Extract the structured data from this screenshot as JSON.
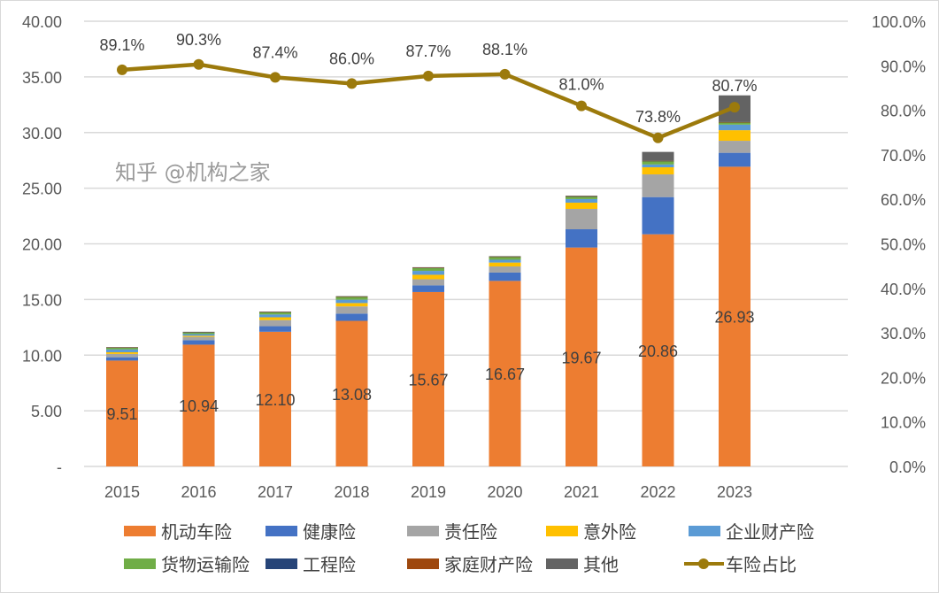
{
  "chart_data": {
    "type": "bar",
    "subtype": "stacked bar + line (secondary axis)",
    "categories": [
      "2015",
      "2016",
      "2017",
      "2018",
      "2019",
      "2020",
      "2021",
      "2022",
      "2023"
    ],
    "y_left": {
      "range": [
        0,
        40
      ],
      "ticks": [
        "-",
        "5.00",
        "10.00",
        "15.00",
        "20.00",
        "25.00",
        "30.00",
        "35.00",
        "40.00"
      ]
    },
    "y_right": {
      "range": [
        0,
        100
      ],
      "ticks": [
        "0.0%",
        "10.0%",
        "20.0%",
        "30.0%",
        "40.0%",
        "50.0%",
        "60.0%",
        "70.0%",
        "80.0%",
        "90.0%",
        "100.0%"
      ]
    },
    "grid": true,
    "legend_position": "bottom",
    "series": [
      {
        "name": "机动车险",
        "color": "#ED7D31",
        "values": [
          9.51,
          10.94,
          12.1,
          13.08,
          15.67,
          16.67,
          19.67,
          20.86,
          26.93
        ],
        "labels": [
          "9.51",
          "10.94",
          "12.10",
          "13.08",
          "15.67",
          "16.67",
          "19.67",
          "20.86",
          "26.93"
        ]
      },
      {
        "name": "健康险",
        "color": "#4472C4",
        "values": [
          0.3,
          0.4,
          0.5,
          0.65,
          0.6,
          0.75,
          1.64,
          3.34,
          1.25
        ]
      },
      {
        "name": "责任险",
        "color": "#A5A5A5",
        "values": [
          0.3,
          0.3,
          0.55,
          0.65,
          0.55,
          0.55,
          1.83,
          2.04,
          1.08
        ]
      },
      {
        "name": "意外险",
        "color": "#FFC000",
        "values": [
          0.15,
          0.1,
          0.25,
          0.3,
          0.4,
          0.35,
          0.56,
          0.64,
          0.95
        ]
      },
      {
        "name": "企业财产险",
        "color": "#5B9BD5",
        "values": [
          0.25,
          0.15,
          0.25,
          0.3,
          0.35,
          0.25,
          0.32,
          0.25,
          0.5
        ]
      },
      {
        "name": "货物运输险",
        "color": "#70AD47",
        "values": [
          0.15,
          0.15,
          0.2,
          0.25,
          0.25,
          0.25,
          0.23,
          0.3,
          0.2
        ]
      },
      {
        "name": "工程险",
        "color": "#264478",
        "values": [
          0.03,
          0.03,
          0.03,
          0.03,
          0.03,
          0.03,
          0.02,
          0.02,
          0.02
        ]
      },
      {
        "name": "家庭财产险",
        "color": "#9E480E",
        "values": [
          0.01,
          0.01,
          0.01,
          0.01,
          0.01,
          0.01,
          0.01,
          0.01,
          0.01
        ]
      },
      {
        "name": "其他",
        "color": "#636363",
        "values": [
          0.02,
          0.02,
          0.02,
          0.03,
          0.04,
          0.04,
          0.05,
          0.8,
          2.4
        ]
      }
    ],
    "line": {
      "name": "车险占比",
      "color": "#9C7A0C",
      "axis": "right",
      "values": [
        89.1,
        90.3,
        87.4,
        86.0,
        87.7,
        88.1,
        81.0,
        73.8,
        80.7
      ],
      "labels": [
        "89.1%",
        "90.3%",
        "87.4%",
        "86.0%",
        "87.7%",
        "88.1%",
        "81.0%",
        "73.8%",
        "80.7%"
      ]
    }
  },
  "watermark": "知乎 @机构之家"
}
